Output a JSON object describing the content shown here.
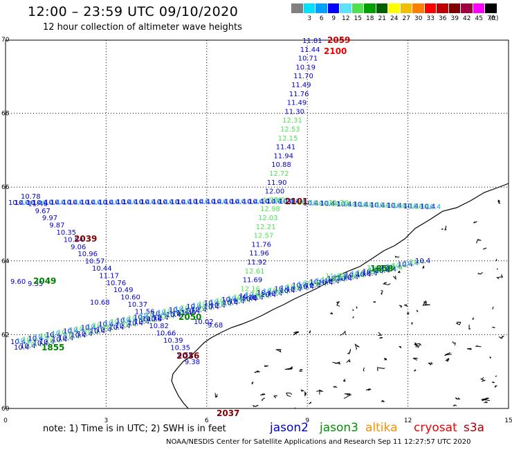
{
  "title": "12:00 – 23:59 UTC 09/10/2020",
  "subtitle": "12 hour collection of altimeter wave heights",
  "legend": {
    "unit": "(ft)",
    "items": [
      {
        "label": "",
        "color": "#808080"
      },
      {
        "label": "3",
        "color": "#00e0ff"
      },
      {
        "label": "6",
        "color": "#00a0ff"
      },
      {
        "label": "9",
        "color": "#0000ff"
      },
      {
        "label": "12",
        "color": "#60e0ff"
      },
      {
        "label": "15",
        "color": "#50e050"
      },
      {
        "label": "18",
        "color": "#00a000"
      },
      {
        "label": "21",
        "color": "#006000"
      },
      {
        "label": "24",
        "color": "#ffff00"
      },
      {
        "label": "27",
        "color": "#f0c000"
      },
      {
        "label": "30",
        "color": "#ff8000"
      },
      {
        "label": "33",
        "color": "#ff0000"
      },
      {
        "label": "36",
        "color": "#c00000"
      },
      {
        "label": "39",
        "color": "#800000"
      },
      {
        "label": "42",
        "color": "#a00040"
      },
      {
        "label": "45",
        "color": "#ff00ff"
      },
      {
        "label": "70",
        "color": "#000000"
      }
    ]
  },
  "axes": {
    "lon_ticks": [
      "0",
      "3",
      "6",
      "9",
      "12",
      "15"
    ],
    "lat_ticks": [
      "60",
      "62",
      "64",
      "66",
      "68",
      "70"
    ]
  },
  "tracks": {
    "north_track": {
      "labels": [
        "11.81",
        "11.44",
        "10.71",
        "10.19",
        "11.70",
        "11.49",
        "11.76",
        "11.49",
        "11.30",
        "12.31",
        "12.53",
        "12.15",
        "11.41",
        "11.94",
        "10.88",
        "12.72",
        "11.90",
        "12.00",
        "12.77",
        "12.98",
        "12.03",
        "12.21",
        "12.57",
        "11.76",
        "11.96",
        "11.92",
        "12.61",
        "11.69",
        "12.16",
        "10.46"
      ],
      "colors": [
        "#0000d0",
        "#0000d0",
        "#0000d0",
        "#0000d0",
        "#0000d0",
        "#0000d0",
        "#0000d0",
        "#0000d0",
        "#0000d0",
        "#50e050",
        "#50e050",
        "#50e050",
        "#0000d0",
        "#0000d0",
        "#0000d0",
        "#50e050",
        "#0000d0",
        "#0000d0",
        "#50e050",
        "#50e050",
        "#50e050",
        "#50e050",
        "#50e050",
        "#0000d0",
        "#0000d0",
        "#0000d0",
        "#50e050",
        "#0000d0",
        "#50e050",
        "#0000d0"
      ]
    },
    "west_track": {
      "labels": [
        "10.78",
        "11.46",
        "9.67",
        "9.97",
        "9.87",
        "10.35",
        "10.84",
        "9.06",
        "10.96",
        "10.57",
        "10.44",
        "11.17",
        "10.76",
        "10.49",
        "10.60",
        "10.37",
        "11.56",
        "10.26",
        "10.82",
        "10.66",
        "10.39",
        "10.35",
        "9.55",
        "9.38"
      ],
      "colors": [
        "#0000d0",
        "#0000d0",
        "#0000d0",
        "#0000d0",
        "#0000d0",
        "#0000d0",
        "#0000d0",
        "#0000d0",
        "#0000d0",
        "#0000d0",
        "#0000d0",
        "#0000d0",
        "#0000d0",
        "#0000d0",
        "#0000d0",
        "#0000d0",
        "#0000d0",
        "#0000d0",
        "#0000d0",
        "#0000d0",
        "#0000d0",
        "#0000d0",
        "#0000d0",
        "#0000d0"
      ]
    },
    "misc_labels": [
      "9.60",
      "9.35",
      "10.68",
      "11.49",
      "10.02",
      "9.68",
      "11.76",
      "11.62",
      "11.73",
      "12.00"
    ]
  },
  "time_labels": [
    {
      "text": "2059",
      "color": "#cc0000"
    },
    {
      "text": "2100",
      "color": "#ee0000"
    },
    {
      "text": "2039",
      "color": "#800000"
    },
    {
      "text": "2049",
      "color": "#008000"
    },
    {
      "text": "2050",
      "color": "#008000"
    },
    {
      "text": "2101",
      "color": "#800000"
    },
    {
      "text": "1858",
      "color": "#008000"
    },
    {
      "text": "1855",
      "color": "#008000"
    },
    {
      "text": "2036",
      "color": "#800000"
    },
    {
      "text": "2037",
      "color": "#800000"
    }
  ],
  "note": "note: 1) Time is in UTC; 2) SWH is in feet",
  "satellites": [
    {
      "name": "jason2",
      "color": "#0000cc"
    },
    {
      "name": "jason3",
      "color": "#009000"
    },
    {
      "name": "altika",
      "color": "#ff8c00"
    },
    {
      "name": "cryosat",
      "color": "#ee0000"
    },
    {
      "name": "s3a",
      "color": "#aa0000"
    }
  ],
  "footer": "NOAA/NESDIS Center for Satellite Applications and Research   Sep 11 12:27:57 UTC 2020"
}
